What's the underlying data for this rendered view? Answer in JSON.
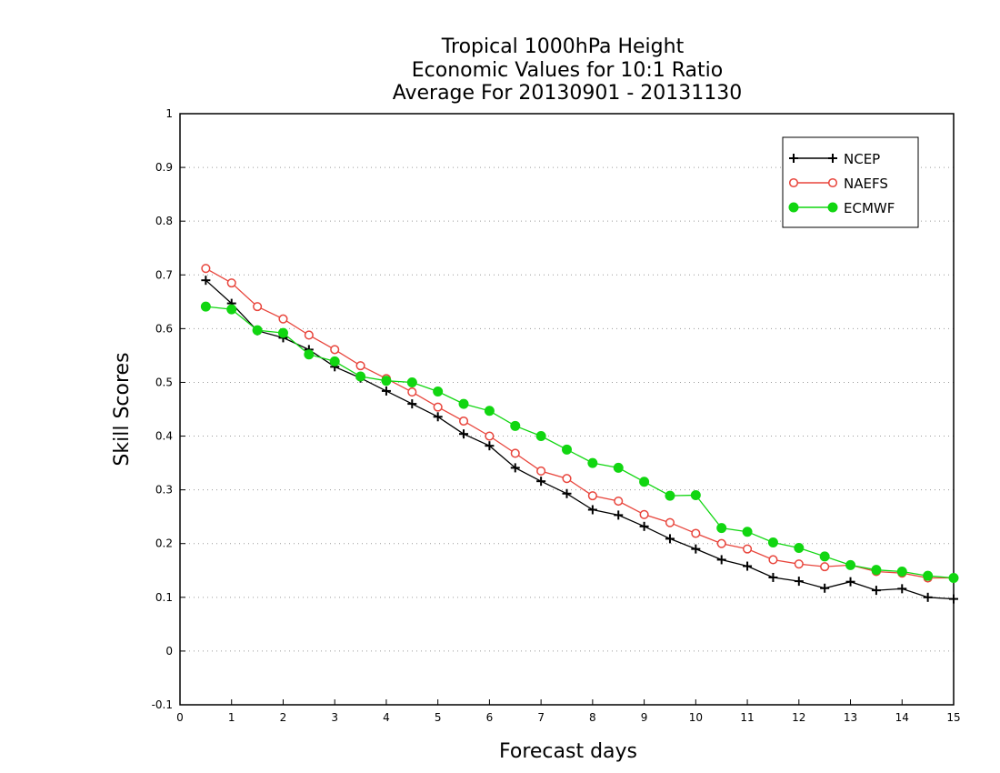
{
  "chart_data": {
    "type": "line",
    "title": [
      "Tropical 1000hPa Height",
      "Economic Values for 10:1 Ratio",
      "Average For 20130901 - 20131130"
    ],
    "xlabel": "Forecast days",
    "ylabel": "Skill Scores",
    "xlim": [
      0,
      15
    ],
    "ylim": [
      -0.1,
      1
    ],
    "xticks": [
      0,
      1,
      2,
      3,
      4,
      5,
      6,
      7,
      8,
      9,
      10,
      11,
      12,
      13,
      14,
      15
    ],
    "xtick_labels": [
      "0",
      "1",
      "2",
      "3",
      "4",
      "5",
      "6",
      "7",
      "8",
      "9",
      "10",
      "11",
      "12",
      "13",
      "14",
      "15"
    ],
    "yticks": [
      -0.1,
      0,
      0.1,
      0.2,
      0.3,
      0.4,
      0.5,
      0.6,
      0.7,
      0.8,
      0.9,
      1
    ],
    "ytick_labels": [
      "-0.1",
      "0",
      "0.1",
      "0.2",
      "0.3",
      "0.4",
      "0.5",
      "0.6",
      "0.7",
      "0.8",
      "0.9",
      "1"
    ],
    "grid": "horizontal dotted",
    "legend_position": "top-right",
    "x": [
      0.5,
      1,
      1.5,
      2,
      2.5,
      3,
      3.5,
      4,
      4.5,
      5,
      5.5,
      6,
      6.5,
      7,
      7.5,
      8,
      8.5,
      9,
      9.5,
      10,
      10.5,
      11,
      11.5,
      12,
      12.5,
      13,
      13.5,
      14,
      14.5,
      15
    ],
    "series": [
      {
        "name": "NCEP",
        "color": "#000000",
        "marker": "plus",
        "values": [
          0.69,
          0.647,
          0.596,
          0.583,
          0.561,
          0.529,
          0.508,
          0.484,
          0.46,
          0.436,
          0.404,
          0.382,
          0.341,
          0.316,
          0.293,
          0.263,
          0.253,
          0.232,
          0.209,
          0.19,
          0.17,
          0.158,
          0.137,
          0.13,
          0.117,
          0.129,
          0.113,
          0.116,
          0.1,
          0.097
        ]
      },
      {
        "name": "NAEFS",
        "color": "#e8453c",
        "marker": "open-circle",
        "values": [
          0.712,
          0.685,
          0.641,
          0.618,
          0.588,
          0.561,
          0.531,
          0.507,
          0.482,
          0.454,
          0.428,
          0.4,
          0.368,
          0.335,
          0.321,
          0.289,
          0.279,
          0.254,
          0.239,
          0.219,
          0.2,
          0.19,
          0.17,
          0.162,
          0.157,
          0.16,
          0.148,
          0.145,
          0.136,
          0.136
        ]
      },
      {
        "name": "ECMWF",
        "color": "#11d611",
        "marker": "filled-circle",
        "values": [
          0.641,
          0.636,
          0.597,
          0.592,
          0.552,
          0.539,
          0.511,
          0.503,
          0.5,
          0.483,
          0.46,
          0.447,
          0.419,
          0.4,
          0.375,
          0.35,
          0.341,
          0.315,
          0.289,
          0.29,
          0.229,
          0.222,
          0.202,
          0.192,
          0.176,
          0.16,
          0.151,
          0.148,
          0.14,
          0.136
        ]
      }
    ]
  }
}
